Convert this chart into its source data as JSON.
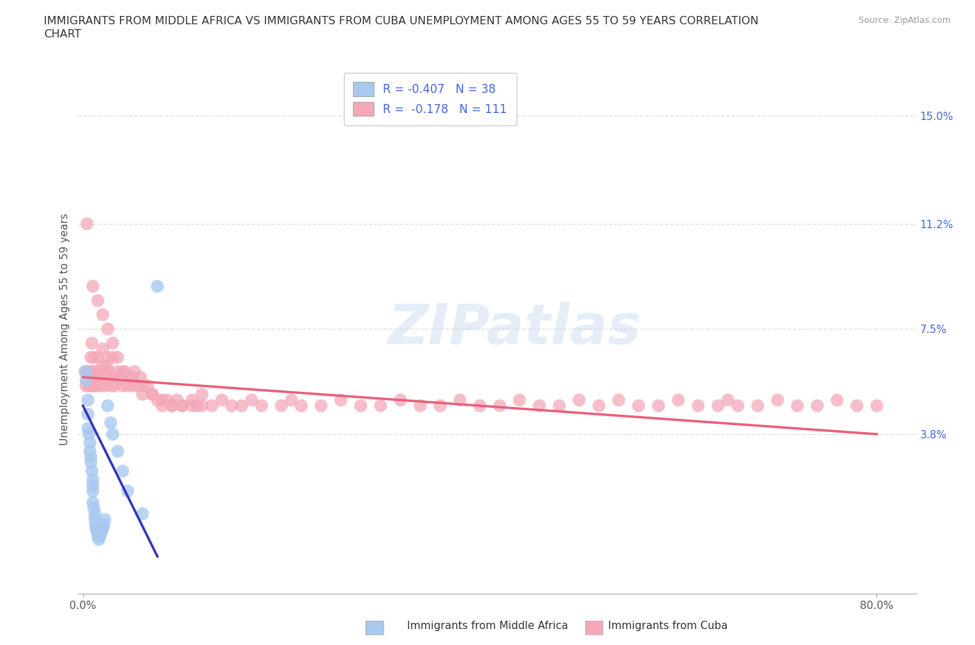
{
  "title_line1": "IMMIGRANTS FROM MIDDLE AFRICA VS IMMIGRANTS FROM CUBA UNEMPLOYMENT AMONG AGES 55 TO 59 YEARS CORRELATION",
  "title_line2": "CHART",
  "source": "Source: ZipAtlas.com",
  "xlabel_ticks": [
    "0.0%",
    "80.0%"
  ],
  "xlabel_tick_vals": [
    0.0,
    0.8
  ],
  "right_ytick_labels": [
    "15.0%",
    "11.2%",
    "7.5%",
    "3.8%"
  ],
  "right_ytick_vals": [
    0.15,
    0.112,
    0.075,
    0.038
  ],
  "hgrid_vals": [
    0.15,
    0.112,
    0.075,
    0.038
  ],
  "xlim": [
    -0.005,
    0.84
  ],
  "ylim": [
    -0.018,
    0.168
  ],
  "ylabel": "Unemployment Among Ages 55 to 59 years",
  "legend_label_africa": "R = -0.407   N = 38",
  "legend_label_cuba": "R =  -0.178   N = 111",
  "color_africa": "#a8c8f0",
  "color_cuba": "#f4a8b8",
  "color_africa_line": "#3333bb",
  "color_cuba_line": "#e8607a",
  "color_text_blue": "#4466dd",
  "color_right_axis": "#4466dd",
  "watermark_text": "ZIPatlas",
  "bottom_label_africa": "Immigrants from Middle Africa",
  "bottom_label_cuba": "Immigrants from Cuba",
  "africa_scatter_x": [
    0.003,
    0.003,
    0.005,
    0.005,
    0.005,
    0.006,
    0.007,
    0.007,
    0.008,
    0.008,
    0.009,
    0.01,
    0.01,
    0.01,
    0.01,
    0.011,
    0.012,
    0.012,
    0.013,
    0.013,
    0.014,
    0.015,
    0.015,
    0.016,
    0.017,
    0.018,
    0.019,
    0.02,
    0.021,
    0.022,
    0.025,
    0.028,
    0.03,
    0.035,
    0.04,
    0.045,
    0.06,
    0.075
  ],
  "africa_scatter_y": [
    0.06,
    0.057,
    0.05,
    0.045,
    0.04,
    0.038,
    0.035,
    0.032,
    0.03,
    0.028,
    0.025,
    0.022,
    0.02,
    0.018,
    0.014,
    0.012,
    0.01,
    0.008,
    0.006,
    0.005,
    0.004,
    0.003,
    0.002,
    0.001,
    0.002,
    0.003,
    0.004,
    0.005,
    0.006,
    0.008,
    0.048,
    0.042,
    0.038,
    0.032,
    0.025,
    0.018,
    0.01,
    0.09
  ],
  "cuba_scatter_x": [
    0.002,
    0.003,
    0.004,
    0.005,
    0.006,
    0.007,
    0.008,
    0.008,
    0.009,
    0.01,
    0.01,
    0.011,
    0.012,
    0.012,
    0.013,
    0.014,
    0.015,
    0.015,
    0.016,
    0.017,
    0.018,
    0.019,
    0.02,
    0.02,
    0.021,
    0.022,
    0.023,
    0.024,
    0.025,
    0.025,
    0.026,
    0.028,
    0.03,
    0.03,
    0.032,
    0.035,
    0.038,
    0.04,
    0.042,
    0.045,
    0.048,
    0.05,
    0.052,
    0.055,
    0.058,
    0.06,
    0.065,
    0.07,
    0.075,
    0.08,
    0.085,
    0.09,
    0.095,
    0.1,
    0.11,
    0.115,
    0.12,
    0.13,
    0.14,
    0.15,
    0.16,
    0.17,
    0.18,
    0.2,
    0.21,
    0.22,
    0.24,
    0.26,
    0.28,
    0.3,
    0.32,
    0.34,
    0.36,
    0.38,
    0.4,
    0.42,
    0.44,
    0.46,
    0.48,
    0.5,
    0.52,
    0.54,
    0.56,
    0.58,
    0.6,
    0.62,
    0.64,
    0.65,
    0.66,
    0.68,
    0.7,
    0.72,
    0.74,
    0.76,
    0.78,
    0.8,
    0.01,
    0.015,
    0.02,
    0.025,
    0.03,
    0.035,
    0.04,
    0.05,
    0.06,
    0.07,
    0.08,
    0.09,
    0.1,
    0.11,
    0.12
  ],
  "cuba_scatter_y": [
    0.06,
    0.055,
    0.112,
    0.06,
    0.055,
    0.06,
    0.055,
    0.065,
    0.07,
    0.055,
    0.06,
    0.065,
    0.055,
    0.06,
    0.058,
    0.055,
    0.065,
    0.06,
    0.058,
    0.06,
    0.055,
    0.058,
    0.062,
    0.068,
    0.06,
    0.055,
    0.058,
    0.062,
    0.058,
    0.065,
    0.06,
    0.055,
    0.058,
    0.065,
    0.055,
    0.06,
    0.058,
    0.055,
    0.06,
    0.055,
    0.058,
    0.055,
    0.06,
    0.055,
    0.058,
    0.052,
    0.055,
    0.052,
    0.05,
    0.048,
    0.05,
    0.048,
    0.05,
    0.048,
    0.05,
    0.048,
    0.052,
    0.048,
    0.05,
    0.048,
    0.048,
    0.05,
    0.048,
    0.048,
    0.05,
    0.048,
    0.048,
    0.05,
    0.048,
    0.048,
    0.05,
    0.048,
    0.048,
    0.05,
    0.048,
    0.048,
    0.05,
    0.048,
    0.048,
    0.05,
    0.048,
    0.05,
    0.048,
    0.048,
    0.05,
    0.048,
    0.048,
    0.05,
    0.048,
    0.048,
    0.05,
    0.048,
    0.048,
    0.05,
    0.048,
    0.048,
    0.09,
    0.085,
    0.08,
    0.075,
    0.07,
    0.065,
    0.06,
    0.058,
    0.055,
    0.052,
    0.05,
    0.048,
    0.048,
    0.048,
    0.048
  ],
  "africa_trend_x": [
    0.0,
    0.075
  ],
  "africa_trend_y": [
    0.048,
    -0.005
  ],
  "cuba_trend_x": [
    0.0,
    0.8
  ],
  "cuba_trend_y": [
    0.058,
    0.038
  ],
  "background_color": "#ffffff",
  "grid_color": "#e0e0e0",
  "scatter_size": 180
}
